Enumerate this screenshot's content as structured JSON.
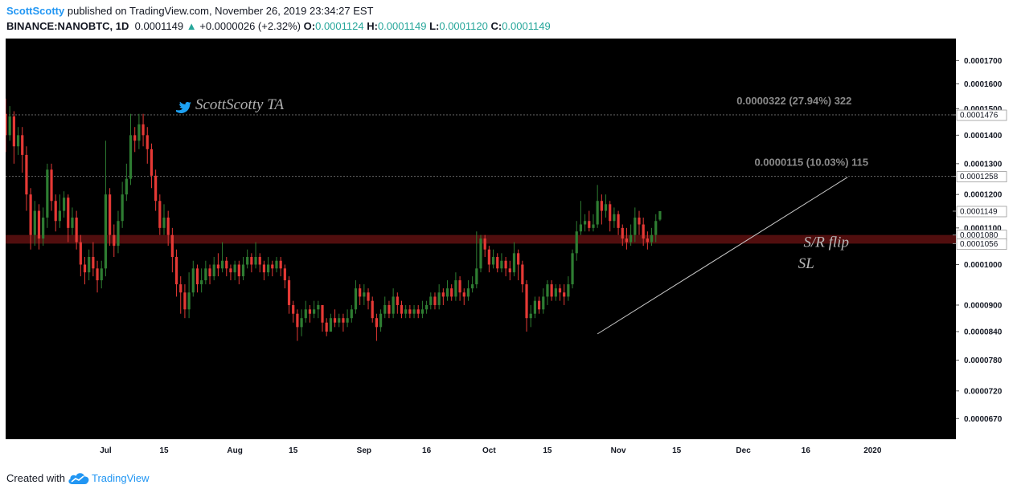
{
  "header": {
    "author": "ScottScotty",
    "published_text": "published on TradingView.com, November 26, 2019 23:34:27 EST",
    "symbol": "BINANCE:NANOBTC, 1D",
    "last_price": "0.0001149",
    "change": "+0.0000026 (+2.32%)",
    "open_label": "O:",
    "open": "0.0001124",
    "high_label": "H:",
    "high": "0.0001149",
    "low_label": "L:",
    "low": "0.0001120",
    "close_label": "C:",
    "close": "0.0001149"
  },
  "footer": {
    "created_with": "Created with",
    "brand": "TradingView"
  },
  "colors": {
    "background": "#000000",
    "up": "#2e7d32",
    "down": "#e53935",
    "zone": "#5a0f0f",
    "panel": "#ffffff",
    "accent": "#2196f3"
  },
  "icons": [
    "twitter-bird-icon",
    "tradingview-cloud-icon",
    "up-triangle-icon"
  ],
  "chart_data": {
    "type": "candlestick",
    "scale": "log",
    "ylim": [
      6.35e-05,
      0.00018
    ],
    "x_range_days": [
      -24,
      204
    ],
    "y_ticks": [
      "0.0001700",
      "0.0001600",
      "0.0001500",
      "0.0001400",
      "0.0001300",
      "0.0001200",
      "0.0001100",
      "0.0001000",
      "0.0000900",
      "0.0000840",
      "0.0000780",
      "0.0000720",
      "0.0000670"
    ],
    "x_ticks": [
      {
        "label": "Jul",
        "day": 0
      },
      {
        "label": "15",
        "day": 14
      },
      {
        "label": "Aug",
        "day": 31
      },
      {
        "label": "15",
        "day": 45
      },
      {
        "label": "Sep",
        "day": 62
      },
      {
        "label": "16",
        "day": 77
      },
      {
        "label": "Oct",
        "day": 92
      },
      {
        "label": "15",
        "day": 106
      },
      {
        "label": "Nov",
        "day": 123
      },
      {
        "label": "15",
        "day": 137
      },
      {
        "label": "Dec",
        "day": 153
      },
      {
        "label": "16",
        "day": 168
      },
      {
        "label": "2020",
        "day": 184
      }
    ],
    "price_labels": [
      {
        "text": "0.0001476",
        "value": 0.0001476
      },
      {
        "text": "0.0001258",
        "value": 0.0001258
      },
      {
        "text": "0.0001149",
        "value": 0.0001149
      },
      {
        "text": "0.0001080",
        "value": 0.000108
      },
      {
        "text": "0.0001056",
        "value": 0.0001056
      }
    ],
    "target_annotations": [
      {
        "text": "0.0000322 (27.94%) 322",
        "level": 0.0001476
      },
      {
        "text": "0.0000115 (10.03%) 115",
        "level": 0.0001258
      }
    ],
    "zone": {
      "low": 0.0001056,
      "high": 0.000108
    },
    "trendline": {
      "start": {
        "day": 118,
        "price": 8.35e-05
      },
      "end": {
        "day": 178,
        "price": 0.0001255
      }
    },
    "annotations": [
      {
        "text": "S/R flip",
        "day": 174,
        "price": 0.0001062
      },
      {
        "text": "SL",
        "day": 170,
        "price": 0.0001005
      }
    ],
    "watermark": "ScottScotty TA",
    "candles": [
      [
        -24,
        0.000148,
        0.00014,
        0.000154,
        0.000134
      ],
      [
        -23,
        0.00014,
        0.000147,
        0.000151,
        0.000138
      ],
      [
        -22,
        0.000147,
        0.000136,
        0.000149,
        0.00013
      ],
      [
        -21,
        0.000136,
        0.00014,
        0.000143,
        0.000133
      ],
      [
        -20,
        0.00014,
        0.000133,
        0.000143,
        0.000127
      ],
      [
        -19,
        0.000133,
        0.00012,
        0.000136,
        0.000115
      ],
      [
        -18,
        0.00012,
        0.000108,
        0.000122,
        0.000104
      ],
      [
        -17,
        0.000108,
        0.000115,
        0.000118,
        0.000105
      ],
      [
        -16,
        0.000115,
        0.000107,
        0.000117,
        0.000104
      ],
      [
        -15,
        0.000107,
        0.000113,
        0.000116,
        0.000105
      ],
      [
        -14,
        0.000113,
        0.000128,
        0.00013,
        0.00011
      ],
      [
        -13,
        0.000128,
        0.000118,
        0.00013,
        0.000115
      ],
      [
        -12,
        0.000118,
        0.000112,
        0.00012,
        0.000109
      ],
      [
        -11,
        0.000112,
        0.000115,
        0.00012,
        0.00011
      ],
      [
        -10,
        0.000115,
        0.000119,
        0.000121,
        0.000113
      ],
      [
        -9,
        0.000119,
        0.00011,
        0.00012,
        0.000106
      ],
      [
        -8,
        0.00011,
        0.000113,
        0.000116,
        0.000108
      ],
      [
        -7,
        0.000113,
        0.000106,
        0.000115,
        0.000104
      ],
      [
        -6,
        0.000106,
        0.0001,
        0.000108,
        9.7e-05
      ],
      [
        -5,
        0.0001,
        9.8e-05,
        0.000102,
        9.5e-05
      ],
      [
        -4,
        9.8e-05,
        0.000102,
        0.000104,
        9.6e-05
      ],
      [
        -3,
        0.000102,
        9.9e-05,
        0.000106,
        9.7e-05
      ],
      [
        -2,
        9.9e-05,
        9.6e-05,
        0.000101,
        9.3e-05
      ],
      [
        -1,
        9.6e-05,
        9.9e-05,
        0.000101,
        9.4e-05
      ],
      [
        0,
        9.9e-05,
        0.00012,
        0.000138,
        9.7e-05
      ],
      [
        1,
        0.00012,
        0.000108,
        0.000122,
        0.000105
      ],
      [
        2,
        0.000108,
        0.000105,
        0.000111,
        0.000102
      ],
      [
        3,
        0.000105,
        0.000112,
        0.000115,
        0.000103
      ],
      [
        4,
        0.000112,
        0.00012,
        0.000124,
        0.00011
      ],
      [
        5,
        0.00012,
        0.000125,
        0.00013,
        0.000118
      ],
      [
        6,
        0.000125,
        0.00014,
        0.000148,
        0.000123
      ],
      [
        7,
        0.00014,
        0.000138,
        0.000143,
        0.000134
      ],
      [
        8,
        0.000138,
        0.000144,
        0.000148,
        0.000135
      ],
      [
        9,
        0.000144,
        0.00014,
        0.000148,
        0.000136
      ],
      [
        10,
        0.00014,
        0.000135,
        0.000143,
        0.00013
      ],
      [
        11,
        0.000135,
        0.000126,
        0.000137,
        0.000122
      ],
      [
        12,
        0.000126,
        0.000118,
        0.000128,
        0.000115
      ],
      [
        13,
        0.000118,
        0.00011,
        0.00012,
        0.000108
      ],
      [
        14,
        0.00011,
        0.000113,
        0.000117,
        0.000108
      ],
      [
        15,
        0.000113,
        0.000108,
        0.000115,
        0.000105
      ],
      [
        16,
        0.000108,
        0.000102,
        0.00011,
        9.8e-05
      ],
      [
        17,
        0.000102,
        9.5e-05,
        0.000104,
        9.2e-05
      ],
      [
        18,
        9.5e-05,
        9.3e-05,
        9.7e-05,
        8.8e-05
      ],
      [
        19,
        9.3e-05,
        8.9e-05,
        9.5e-05,
        8.7e-05
      ],
      [
        20,
        8.9e-05,
        9.3e-05,
        9.8e-05,
        8.7e-05
      ],
      [
        21,
        9.3e-05,
        9.9e-05,
        0.000101,
        9.2e-05
      ],
      [
        22,
        9.9e-05,
        9.5e-05,
        0.0001,
        9.3e-05
      ],
      [
        23,
        9.5e-05,
        9.6e-05,
        9.9e-05,
        9.3e-05
      ],
      [
        24,
        9.6e-05,
        9.9e-05,
        0.000101,
        9.5e-05
      ],
      [
        25,
        9.9e-05,
        9.7e-05,
        0.0001,
        9.5e-05
      ],
      [
        26,
        9.7e-05,
        0.0001,
        0.000102,
        9.6e-05
      ],
      [
        27,
        0.0001,
        9.9e-05,
        0.000103,
        9.7e-05
      ],
      [
        28,
        9.9e-05,
        0.000101,
        0.000106,
        9.8e-05
      ],
      [
        29,
        0.000101,
        9.9e-05,
        0.000102,
        9.7e-05
      ],
      [
        30,
        9.9e-05,
        9.8e-05,
        0.0001,
        9.6e-05
      ],
      [
        31,
        9.8e-05,
        0.0001,
        0.000101,
        9.6e-05
      ],
      [
        32,
        0.0001,
        9.7e-05,
        0.000101,
        9.5e-05
      ],
      [
        33,
        9.7e-05,
        0.0001,
        0.000102,
        9.6e-05
      ],
      [
        34,
        0.0001,
        0.000102,
        0.000104,
        9.9e-05
      ],
      [
        35,
        0.000102,
        0.0001,
        0.000103,
        9.8e-05
      ],
      [
        36,
        0.0001,
        0.000102,
        0.000106,
        9.9e-05
      ],
      [
        37,
        0.000102,
        0.0001,
        0.000103,
        9.8e-05
      ],
      [
        38,
        0.0001,
        9.8e-05,
        0.000101,
        9.6e-05
      ],
      [
        39,
        9.8e-05,
        0.0001,
        0.000102,
        9.7e-05
      ],
      [
        40,
        0.0001,
        9.9e-05,
        0.000101,
        9.7e-05
      ],
      [
        41,
        9.9e-05,
        0.000101,
        0.000102,
        9.8e-05
      ],
      [
        42,
        0.000101,
        9.9e-05,
        0.000102,
        9.7e-05
      ],
      [
        43,
        9.9e-05,
        9.6e-05,
        0.0001,
        9.4e-05
      ],
      [
        44,
        9.6e-05,
        9e-05,
        9.7e-05,
        8.8e-05
      ],
      [
        45,
        9e-05,
        8.8e-05,
        9.1e-05,
        8.6e-05
      ],
      [
        46,
        8.8e-05,
        8.5e-05,
        8.9e-05,
        8.2e-05
      ],
      [
        47,
        8.5e-05,
        8.7e-05,
        8.9e-05,
        8.3e-05
      ],
      [
        48,
        8.7e-05,
        8.9e-05,
        9.1e-05,
        8.6e-05
      ],
      [
        49,
        8.9e-05,
        8.8e-05,
        9e-05,
        8.6e-05
      ],
      [
        50,
        8.8e-05,
        8.9e-05,
        9.1e-05,
        8.7e-05
      ],
      [
        51,
        8.9e-05,
        9e-05,
        9.1e-05,
        8.7e-05
      ],
      [
        52,
        9e-05,
        8.6e-05,
        9e-05,
        8.4e-05
      ],
      [
        53,
        8.6e-05,
        8.4e-05,
        8.7e-05,
        8.3e-05
      ],
      [
        54,
        8.4e-05,
        8.7e-05,
        8.8e-05,
        8.4e-05
      ],
      [
        55,
        8.7e-05,
        8.6e-05,
        8.9e-05,
        8.5e-05
      ],
      [
        56,
        8.6e-05,
        8.7e-05,
        8.8e-05,
        8.5e-05
      ],
      [
        57,
        8.7e-05,
        8.6e-05,
        8.8e-05,
        8.4e-05
      ],
      [
        58,
        8.6e-05,
        8.7e-05,
        8.9e-05,
        8.5e-05
      ],
      [
        59,
        8.7e-05,
        8.9e-05,
        9e-05,
        8.6e-05
      ],
      [
        60,
        8.9e-05,
        9.4e-05,
        9.6e-05,
        8.8e-05
      ],
      [
        61,
        9.4e-05,
        9.2e-05,
        9.5e-05,
        9e-05
      ],
      [
        62,
        9.2e-05,
        9.3e-05,
        9.5e-05,
        9e-05
      ],
      [
        63,
        9.3e-05,
        9.1e-05,
        9.4e-05,
        8.9e-05
      ],
      [
        64,
        9.1e-05,
        8.7e-05,
        9.2e-05,
        8.6e-05
      ],
      [
        65,
        8.7e-05,
        8.5e-05,
        8.8e-05,
        8.2e-05
      ],
      [
        66,
        8.5e-05,
        8.8e-05,
        8.9e-05,
        8.4e-05
      ],
      [
        67,
        8.8e-05,
        9e-05,
        9.2e-05,
        8.7e-05
      ],
      [
        68,
        9e-05,
        8.8e-05,
        9.1e-05,
        8.7e-05
      ],
      [
        69,
        8.8e-05,
        9.2e-05,
        9.4e-05,
        8.7e-05
      ],
      [
        70,
        9.2e-05,
        9e-05,
        9.3e-05,
        8.8e-05
      ],
      [
        71,
        9e-05,
        8.8e-05,
        9.1e-05,
        8.7e-05
      ],
      [
        72,
        8.8e-05,
        8.9e-05,
        9e-05,
        8.7e-05
      ],
      [
        73,
        8.9e-05,
        8.8e-05,
        9e-05,
        8.7e-05
      ],
      [
        74,
        8.8e-05,
        8.9e-05,
        9e-05,
        8.7e-05
      ],
      [
        75,
        8.9e-05,
        8.8e-05,
        9e-05,
        8.7e-05
      ],
      [
        76,
        8.8e-05,
        8.9e-05,
        9.1e-05,
        8.7e-05
      ],
      [
        77,
        8.9e-05,
        9e-05,
        9.1e-05,
        8.8e-05
      ],
      [
        78,
        9e-05,
        9.2e-05,
        9.3e-05,
        8.9e-05
      ],
      [
        79,
        9.2e-05,
        9e-05,
        9.3e-05,
        8.9e-05
      ],
      [
        80,
        9e-05,
        9.3e-05,
        9.5e-05,
        8.9e-05
      ],
      [
        81,
        9.3e-05,
        9.2e-05,
        9.4e-05,
        9e-05
      ],
      [
        82,
        9.2e-05,
        9.4e-05,
        9.6e-05,
        9.1e-05
      ],
      [
        83,
        9.4e-05,
        9.2e-05,
        9.5e-05,
        9.1e-05
      ],
      [
        84,
        9.2e-05,
        9.6e-05,
        9.8e-05,
        9.1e-05
      ],
      [
        85,
        9.6e-05,
        9.3e-05,
        9.7e-05,
        9.1e-05
      ],
      [
        86,
        9.3e-05,
        9.2e-05,
        9.4e-05,
        9e-05
      ],
      [
        87,
        9.2e-05,
        9.4e-05,
        9.6e-05,
        9.1e-05
      ],
      [
        88,
        9.4e-05,
        9.5e-05,
        9.7e-05,
        9.3e-05
      ],
      [
        89,
        9.5e-05,
        9.9e-05,
        0.000109,
        9.4e-05
      ],
      [
        90,
        9.9e-05,
        0.000107,
        0.000108,
        9.8e-05
      ],
      [
        91,
        0.000107,
        0.000104,
        0.000108,
        0.000102
      ],
      [
        92,
        0.000104,
        0.0001,
        0.000105,
        9.8e-05
      ],
      [
        93,
        0.0001,
        0.000102,
        0.000104,
        9.9e-05
      ],
      [
        94,
        0.000102,
        9.9e-05,
        0.000103,
        9.8e-05
      ],
      [
        95,
        9.9e-05,
        0.000101,
        0.000103,
        9.8e-05
      ],
      [
        96,
        0.000101,
        9.9e-05,
        0.000102,
        9.7e-05
      ],
      [
        97,
        9.9e-05,
        9.8e-05,
        0.000101,
        9.6e-05
      ],
      [
        98,
        9.8e-05,
        0.000103,
        0.000106,
        9.7e-05
      ],
      [
        99,
        0.000103,
        0.0001,
        0.000104,
        9.6e-05
      ],
      [
        100,
        0.0001,
        9.5e-05,
        0.000101,
        9.3e-05
      ],
      [
        101,
        9.5e-05,
        8.7e-05,
        9.6e-05,
        8.4e-05
      ],
      [
        102,
        8.7e-05,
        8.8e-05,
        9e-05,
        8.5e-05
      ],
      [
        103,
        8.8e-05,
        9.1e-05,
        9.2e-05,
        8.7e-05
      ],
      [
        104,
        9.1e-05,
        8.9e-05,
        9.2e-05,
        8.8e-05
      ],
      [
        105,
        8.9e-05,
        9.2e-05,
        9.4e-05,
        8.8e-05
      ],
      [
        106,
        9.2e-05,
        9.5e-05,
        9.6e-05,
        9e-05
      ],
      [
        107,
        9.5e-05,
        9.2e-05,
        9.6e-05,
        9.1e-05
      ],
      [
        108,
        9.2e-05,
        9.4e-05,
        9.5e-05,
        9.1e-05
      ],
      [
        109,
        9.4e-05,
        9.3e-05,
        9.5e-05,
        9.1e-05
      ],
      [
        110,
        9.3e-05,
        9.2e-05,
        9.5e-05,
        9e-05
      ],
      [
        111,
        9.2e-05,
        9.5e-05,
        9.7e-05,
        9.1e-05
      ],
      [
        112,
        9.5e-05,
        0.000103,
        0.000104,
        9.4e-05
      ],
      [
        113,
        0.000103,
        0.000109,
        0.000112,
        0.000101
      ],
      [
        114,
        0.000109,
        0.000111,
        0.000118,
        0.000108
      ],
      [
        115,
        0.000111,
        0.000112,
        0.000114,
        0.000109
      ],
      [
        116,
        0.000112,
        0.00011,
        0.000115,
        0.000109
      ],
      [
        117,
        0.00011,
        0.000111,
        0.000114,
        0.000109
      ],
      [
        118,
        0.000111,
        0.000118,
        0.000123,
        0.00011
      ],
      [
        119,
        0.000118,
        0.000115,
        0.00012,
        0.000111
      ],
      [
        120,
        0.000115,
        0.000117,
        0.00012,
        0.000113
      ],
      [
        121,
        0.000117,
        0.000112,
        0.000118,
        0.000109
      ],
      [
        122,
        0.000112,
        0.000114,
        0.000116,
        0.00011
      ],
      [
        123,
        0.000114,
        0.00011,
        0.000115,
        0.000108
      ],
      [
        124,
        0.00011,
        0.000107,
        0.000111,
        0.000105
      ],
      [
        125,
        0.000107,
        0.000106,
        0.00011,
        0.000104
      ],
      [
        126,
        0.000106,
        0.000108,
        0.000111,
        0.000105
      ],
      [
        127,
        0.000108,
        0.000113,
        0.000116,
        0.000106
      ],
      [
        128,
        0.000113,
        0.000111,
        0.000115,
        0.000108
      ],
      [
        129,
        0.000111,
        0.000107,
        0.000113,
        0.000105
      ],
      [
        130,
        0.000107,
        0.000106,
        0.000109,
        0.000104
      ],
      [
        131,
        0.000106,
        0.000108,
        0.00011,
        0.000105
      ],
      [
        132,
        0.000108,
        0.000112,
        0.000114,
        0.000106
      ],
      [
        133,
        0.0001124,
        0.0001149,
        0.0001149,
        0.000112
      ]
    ]
  }
}
